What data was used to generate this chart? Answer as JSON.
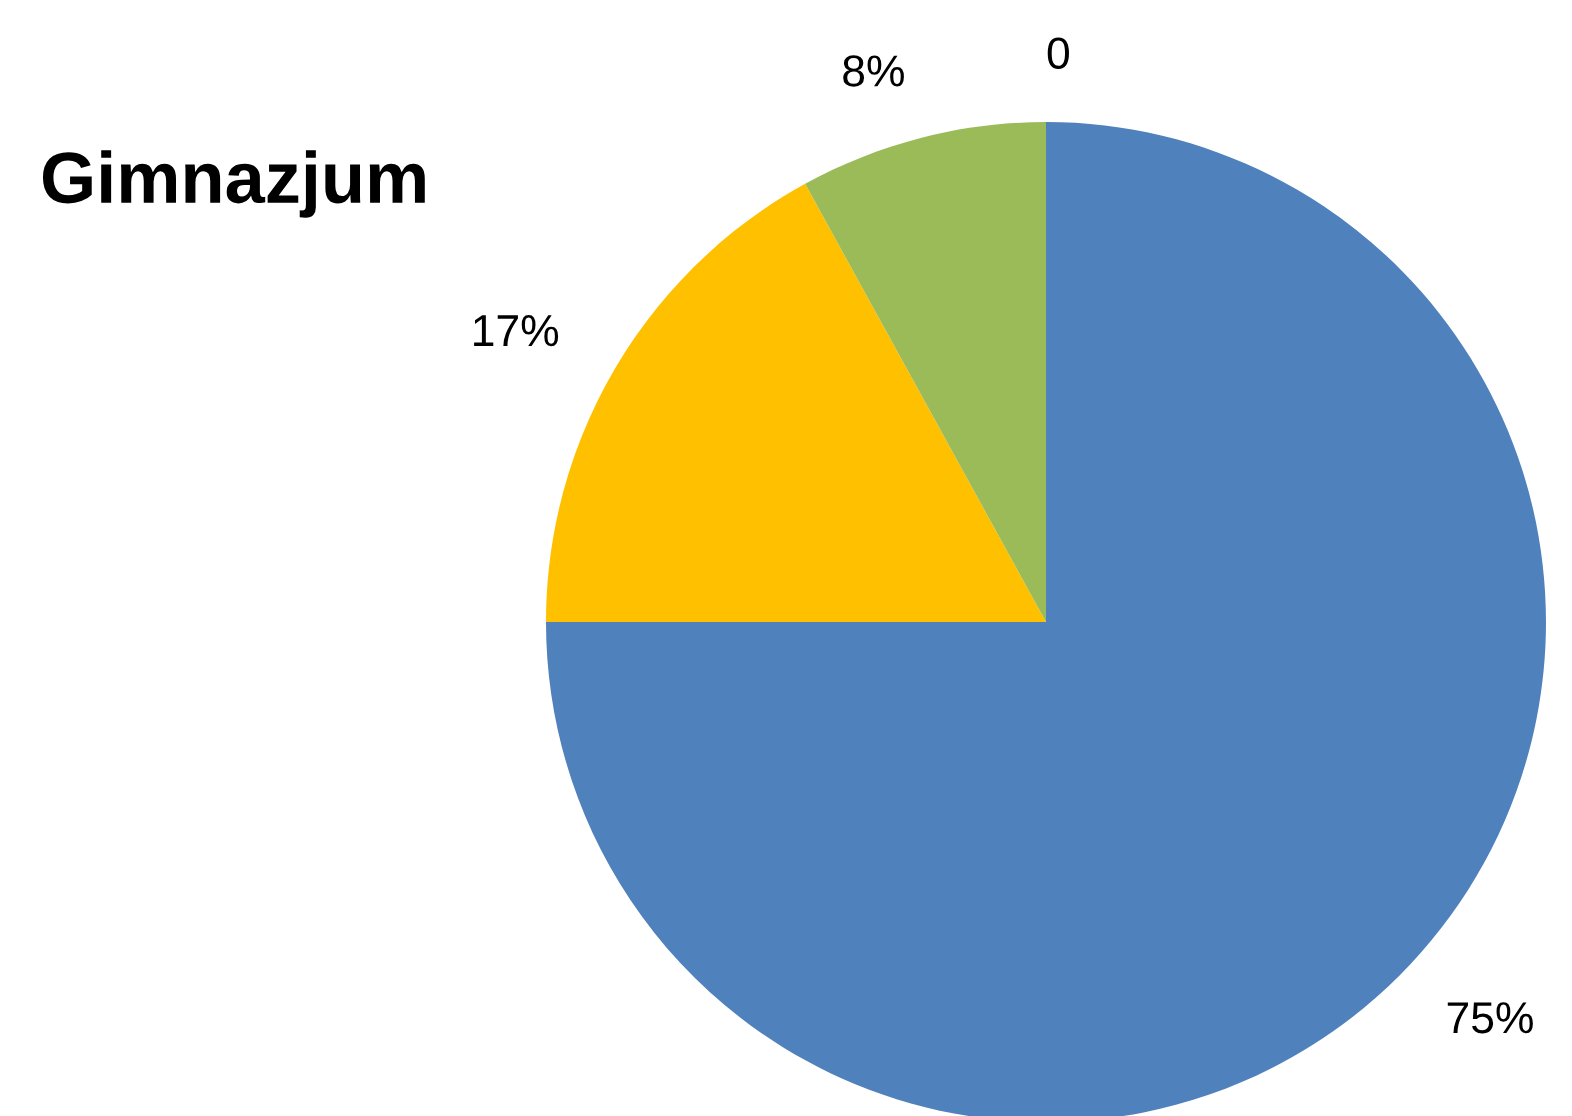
{
  "chart_data": {
    "type": "pie",
    "title": "Gimnazjum",
    "categories": [
      null,
      null,
      null,
      null
    ],
    "values": [
      75,
      17,
      8,
      0
    ],
    "colors": [
      "#4f81bd",
      "#ffc000",
      "#9bbb59",
      "#8064a2"
    ],
    "value_labels": [
      "75%",
      "17%",
      "8%",
      "0"
    ],
    "legend": false
  }
}
